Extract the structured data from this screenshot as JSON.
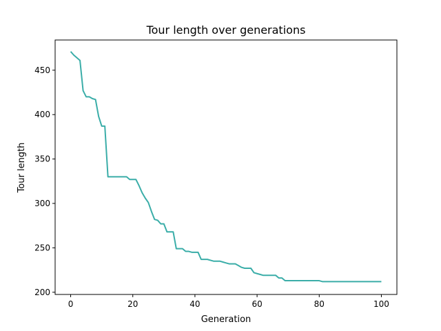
{
  "chart_data": {
    "type": "line",
    "title": "Tour length over generations",
    "xlabel": "Generation",
    "ylabel": "Tour length",
    "xlim": [
      -5,
      105
    ],
    "ylim": [
      197.5,
      484
    ],
    "xticks": [
      0,
      20,
      40,
      60,
      80,
      100
    ],
    "yticks": [
      200,
      250,
      300,
      350,
      400,
      450
    ],
    "grid": false,
    "legend": "none",
    "series": [
      {
        "color": "#3aada8",
        "x": [
          0,
          1,
          2,
          3,
          4,
          5,
          6,
          7,
          8,
          9,
          10,
          11,
          12,
          13,
          14,
          15,
          16,
          17,
          18,
          19,
          20,
          21,
          22,
          23,
          24,
          25,
          26,
          27,
          28,
          29,
          30,
          31,
          32,
          33,
          34,
          35,
          36,
          37,
          38,
          39,
          40,
          41,
          42,
          43,
          44,
          45,
          46,
          47,
          48,
          49,
          50,
          51,
          52,
          53,
          54,
          55,
          56,
          57,
          58,
          59,
          60,
          61,
          62,
          63,
          64,
          65,
          66,
          67,
          68,
          69,
          70,
          71,
          72,
          73,
          74,
          75,
          76,
          77,
          78,
          79,
          80,
          81,
          82,
          83,
          84,
          85,
          86,
          87,
          88,
          89,
          90,
          91,
          92,
          93,
          94,
          95,
          96,
          97,
          98,
          99,
          100
        ],
        "y": [
          471,
          467,
          464,
          461,
          427,
          420,
          420,
          418,
          417,
          398,
          387,
          387,
          330,
          330,
          330,
          330,
          330,
          330,
          330,
          327,
          327,
          327,
          320,
          312,
          306,
          301,
          291,
          282,
          281,
          277,
          277,
          268,
          268,
          268,
          249,
          249,
          249,
          246,
          246,
          245,
          245,
          245,
          237,
          237,
          237,
          236,
          235,
          235,
          235,
          234,
          233,
          232,
          232,
          232,
          230,
          228,
          227,
          227,
          227,
          222,
          221,
          220,
          219,
          219,
          219,
          219,
          219,
          216,
          216,
          213,
          213,
          213,
          213,
          213,
          213,
          213,
          213,
          213,
          213,
          213,
          213,
          212,
          212,
          212,
          212,
          212,
          212,
          212,
          212,
          212,
          212,
          212,
          212,
          212,
          212,
          212,
          212,
          212,
          212,
          212,
          212
        ]
      }
    ]
  }
}
